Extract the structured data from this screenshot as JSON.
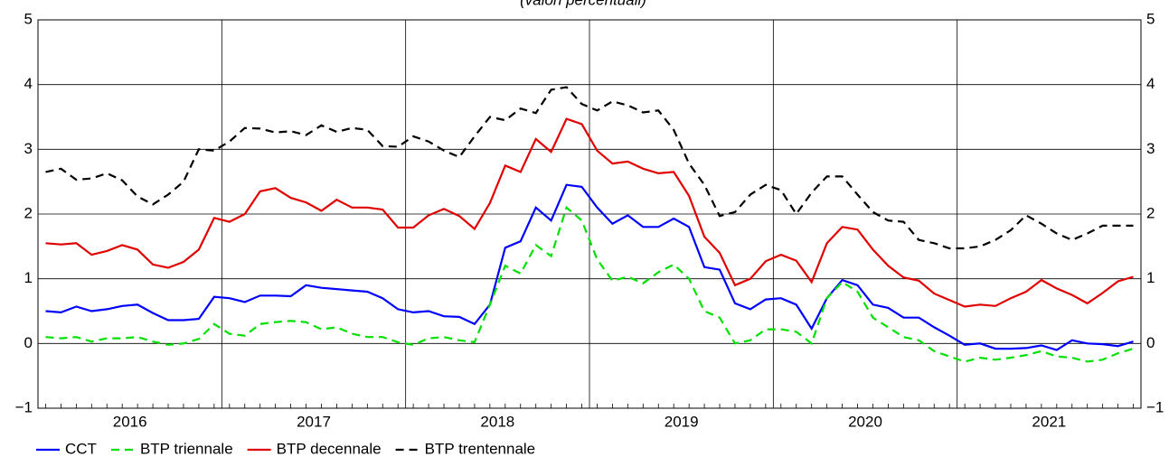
{
  "chart_data": {
    "type": "line",
    "title": "(valori percentuali)",
    "x": [
      "2016-01",
      "2016-02",
      "2016-03",
      "2016-04",
      "2016-05",
      "2016-06",
      "2016-07",
      "2016-08",
      "2016-09",
      "2016-10",
      "2016-11",
      "2016-12",
      "2017-01",
      "2017-02",
      "2017-03",
      "2017-04",
      "2017-05",
      "2017-06",
      "2017-07",
      "2017-08",
      "2017-09",
      "2017-10",
      "2017-11",
      "2017-12",
      "2018-01",
      "2018-02",
      "2018-03",
      "2018-04",
      "2018-05",
      "2018-06",
      "2018-07",
      "2018-08",
      "2018-09",
      "2018-10",
      "2018-11",
      "2018-12",
      "2019-01",
      "2019-02",
      "2019-03",
      "2019-04",
      "2019-05",
      "2019-06",
      "2019-07",
      "2019-08",
      "2019-09",
      "2019-10",
      "2019-11",
      "2019-12",
      "2020-01",
      "2020-02",
      "2020-03",
      "2020-04",
      "2020-05",
      "2020-06",
      "2020-07",
      "2020-08",
      "2020-09",
      "2020-10",
      "2020-11",
      "2020-12",
      "2021-01",
      "2021-02",
      "2021-03",
      "2021-04",
      "2021-05",
      "2021-06",
      "2021-07",
      "2021-08",
      "2021-09",
      "2021-10",
      "2021-11",
      "2021-12"
    ],
    "xticks": [
      "2016",
      "2017",
      "2018",
      "2019",
      "2020",
      "2021"
    ],
    "ylim": [
      -1,
      5
    ],
    "yticks": [
      {
        "value": -1,
        "label": "−1"
      },
      0,
      1,
      2,
      3,
      4,
      5
    ],
    "y2lim": [
      -1,
      5
    ],
    "y2ticks": [
      {
        "value": -1,
        "label": "−1"
      },
      0,
      1,
      2,
      3,
      4,
      5
    ],
    "grid": true,
    "legend": "bottom",
    "series": [
      {
        "name": "CCT",
        "color": "#0000ff",
        "dash": false,
        "values": [
          0.5,
          0.48,
          0.57,
          0.5,
          0.53,
          0.58,
          0.6,
          0.47,
          0.36,
          0.36,
          0.38,
          0.72,
          0.7,
          0.64,
          0.74,
          0.74,
          0.73,
          0.9,
          0.86,
          0.84,
          0.82,
          0.8,
          0.7,
          0.53,
          0.48,
          0.5,
          0.42,
          0.41,
          0.3,
          0.6,
          1.48,
          1.58,
          2.1,
          1.9,
          2.45,
          2.42,
          2.1,
          1.85,
          1.98,
          1.8,
          1.8,
          1.93,
          1.8,
          1.18,
          1.14,
          0.62,
          0.53,
          0.68,
          0.7,
          0.6,
          0.23,
          0.7,
          0.98,
          0.9,
          0.6,
          0.55,
          0.4,
          0.4,
          0.25,
          0.12,
          -0.02,
          0,
          -0.08,
          -0.08,
          -0.07,
          -0.03,
          -0.1,
          0.05,
          0,
          -0.01,
          -0.04,
          0.03
        ]
      },
      {
        "name": "BTP triennale",
        "color": "#00e000",
        "dash": true,
        "values": [
          0.1,
          0.08,
          0.1,
          0.03,
          0.08,
          0.08,
          0.1,
          0.03,
          -0.02,
          0,
          0.07,
          0.3,
          0.15,
          0.12,
          0.3,
          0.33,
          0.35,
          0.33,
          0.22,
          0.25,
          0.15,
          0.1,
          0.1,
          0.02,
          -0.02,
          0.08,
          0.1,
          0.05,
          0.02,
          0.6,
          1.2,
          1.08,
          1.52,
          1.35,
          2.1,
          1.9,
          1.3,
          0.97,
          1.03,
          0.93,
          1.1,
          1.22,
          1.0,
          0.5,
          0.4,
          0.0,
          0.05,
          0.22,
          0.22,
          0.18,
          0.0,
          0.7,
          0.95,
          0.8,
          0.4,
          0.25,
          0.1,
          0.05,
          -0.12,
          -0.2,
          -0.28,
          -0.22,
          -0.25,
          -0.22,
          -0.18,
          -0.12,
          -0.2,
          -0.22,
          -0.28,
          -0.25,
          -0.15,
          -0.08
        ]
      },
      {
        "name": "BTP decennale",
        "color": "#e00000",
        "dash": false,
        "values": [
          1.55,
          1.53,
          1.55,
          1.37,
          1.43,
          1.52,
          1.45,
          1.22,
          1.17,
          1.26,
          1.45,
          1.94,
          1.88,
          2.0,
          2.35,
          2.4,
          2.25,
          2.18,
          2.05,
          2.22,
          2.1,
          2.1,
          2.07,
          1.79,
          1.79,
          1.98,
          2.08,
          1.97,
          1.77,
          2.17,
          2.75,
          2.65,
          3.16,
          2.96,
          3.47,
          3.39,
          2.98,
          2.78,
          2.81,
          2.7,
          2.63,
          2.65,
          2.28,
          1.65,
          1.4,
          0.9,
          1.0,
          1.27,
          1.37,
          1.28,
          0.95,
          1.55,
          1.8,
          1.76,
          1.45,
          1.2,
          1.02,
          0.97,
          0.77,
          0.67,
          0.57,
          0.6,
          0.58,
          0.7,
          0.8,
          0.98,
          0.85,
          0.75,
          0.62,
          0.78,
          0.96,
          1.03
        ]
      },
      {
        "name": "BTP trentennale",
        "color": "#000000",
        "dash": true,
        "values": [
          2.65,
          2.7,
          2.53,
          2.55,
          2.63,
          2.52,
          2.27,
          2.15,
          2.3,
          2.5,
          3.0,
          2.98,
          3.12,
          3.33,
          3.32,
          3.26,
          3.28,
          3.22,
          3.37,
          3.27,
          3.33,
          3.3,
          3.05,
          3.04,
          3.2,
          3.12,
          2.98,
          2.88,
          3.2,
          3.5,
          3.45,
          3.63,
          3.56,
          3.92,
          3.96,
          3.7,
          3.6,
          3.74,
          3.68,
          3.57,
          3.6,
          3.3,
          2.78,
          2.45,
          1.97,
          2.03,
          2.3,
          2.45,
          2.37,
          2.0,
          2.33,
          2.58,
          2.58,
          2.3,
          2.03,
          1.9,
          1.88,
          1.6,
          1.55,
          1.47,
          1.47,
          1.5,
          1.6,
          1.75,
          1.98,
          1.85,
          1.7,
          1.6,
          1.7,
          1.82,
          1.82,
          1.82
        ]
      }
    ]
  }
}
